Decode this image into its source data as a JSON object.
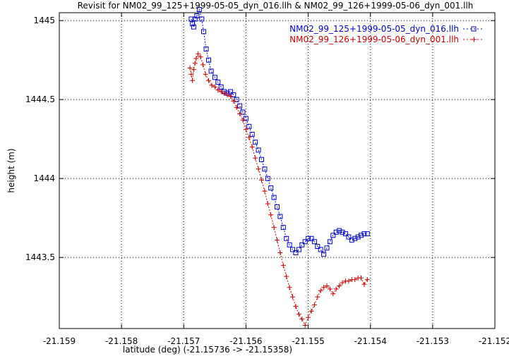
{
  "chart_data": {
    "type": "scatter",
    "title": "Revisit for NM02_99_125+1999-05-05_dyn_016.llh & NM02_99_126+1999-05-06_dyn_001.llh",
    "xlabel": "latitude (deg) (-21.15736 -> -21.15358)",
    "ylabel": "height (m)",
    "xlim": [
      -21.159,
      -21.152
    ],
    "ylim": [
      1443.05,
      1445.05
    ],
    "xticks": [
      -21.159,
      -21.158,
      -21.157,
      -21.156,
      -21.155,
      -21.154,
      -21.153,
      -21.152
    ],
    "xtick_labels": [
      "-21.159",
      "-21.158",
      "-21.157",
      "-21.156",
      "-21.155",
      "-21.154",
      "-21.153",
      "-21.152"
    ],
    "yticks": [
      1443.5,
      1444,
      1444.5,
      1445
    ],
    "ytick_labels": [
      "1443.5",
      "1444",
      "1444.5",
      "1445"
    ],
    "grid": true,
    "legend_position": "top-right",
    "series": [
      {
        "name": "NM02_99_125+1999-05-05_dyn_016.llh",
        "color": "#0000cc",
        "marker": "square",
        "x": [
          -21.15688,
          -21.15686,
          -21.15684,
          -21.15682,
          -21.15679,
          -21.15675,
          -21.15671,
          -21.15668,
          -21.15664,
          -21.1566,
          -21.15656,
          -21.1565,
          -21.15645,
          -21.1564,
          -21.15635,
          -21.1563,
          -21.15625,
          -21.1562,
          -21.15615,
          -21.1561,
          -21.15605,
          -21.156,
          -21.15595,
          -21.1559,
          -21.15585,
          -21.1558,
          -21.15575,
          -21.1557,
          -21.15565,
          -21.1556,
          -21.15555,
          -21.1555,
          -21.15545,
          -21.1554,
          -21.15535,
          -21.1553,
          -21.15525,
          -21.1552,
          -21.15515,
          -21.1551,
          -21.15505,
          -21.155,
          -21.15495,
          -21.1549,
          -21.15485,
          -21.1548,
          -21.15475,
          -21.1547,
          -21.15465,
          -21.1546,
          -21.15455,
          -21.1545,
          -21.15445,
          -21.1544,
          -21.15435,
          -21.1543,
          -21.15425,
          -21.1542,
          -21.15415,
          -21.1541,
          -21.15405
        ],
        "y": [
          1445.01,
          1444.98,
          1444.96,
          1445.01,
          1445.03,
          1445.07,
          1445.01,
          1444.93,
          1444.82,
          1444.75,
          1444.68,
          1444.64,
          1444.61,
          1444.58,
          1444.55,
          1444.54,
          1444.55,
          1444.53,
          1444.5,
          1444.46,
          1444.42,
          1444.38,
          1444.33,
          1444.28,
          1444.23,
          1444.18,
          1444.12,
          1444.06,
          1444.0,
          1443.94,
          1443.88,
          1443.82,
          1443.76,
          1443.69,
          1443.62,
          1443.58,
          1443.55,
          1443.53,
          1443.55,
          1443.58,
          1443.6,
          1443.62,
          1443.62,
          1443.6,
          1443.57,
          1443.55,
          1443.52,
          1443.56,
          1443.6,
          1443.64,
          1443.66,
          1443.67,
          1443.66,
          1443.65,
          1443.63,
          1443.61,
          1443.62,
          1443.63,
          1443.64,
          1443.65,
          1443.65
        ]
      },
      {
        "name": "NM02_99_126+1999-05-06_dyn_001.llh",
        "color": "#cc0000",
        "marker": "plus",
        "x": [
          -21.1569,
          -21.15688,
          -21.15686,
          -21.15684,
          -21.15682,
          -21.1568,
          -21.15677,
          -21.15673,
          -21.15669,
          -21.15665,
          -21.1566,
          -21.15655,
          -21.1565,
          -21.15645,
          -21.1564,
          -21.15635,
          -21.1563,
          -21.15625,
          -21.1562,
          -21.15615,
          -21.1561,
          -21.15605,
          -21.156,
          -21.15595,
          -21.1559,
          -21.15585,
          -21.1558,
          -21.15575,
          -21.1557,
          -21.15565,
          -21.1556,
          -21.15555,
          -21.1555,
          -21.15545,
          -21.1554,
          -21.15535,
          -21.1553,
          -21.15525,
          -21.1552,
          -21.15515,
          -21.1551,
          -21.15505,
          -21.155,
          -21.15495,
          -21.1549,
          -21.15485,
          -21.1548,
          -21.15475,
          -21.1547,
          -21.15465,
          -21.1546,
          -21.15455,
          -21.1545,
          -21.15445,
          -21.1544,
          -21.15435,
          -21.1543,
          -21.15425,
          -21.1542,
          -21.15415,
          -21.1541,
          -21.15405
        ],
        "y": [
          1444.7,
          1444.66,
          1444.62,
          1444.69,
          1444.73,
          1444.76,
          1444.79,
          1444.77,
          1444.72,
          1444.66,
          1444.62,
          1444.59,
          1444.58,
          1444.56,
          1444.55,
          1444.54,
          1444.53,
          1444.52,
          1444.49,
          1444.45,
          1444.41,
          1444.37,
          1444.31,
          1444.26,
          1444.2,
          1444.13,
          1444.06,
          1443.99,
          1443.92,
          1443.84,
          1443.77,
          1443.69,
          1443.61,
          1443.53,
          1443.45,
          1443.38,
          1443.31,
          1443.25,
          1443.19,
          1443.14,
          1443.11,
          1443.07,
          1443.12,
          1443.16,
          1443.2,
          1443.25,
          1443.29,
          1443.31,
          1443.32,
          1443.3,
          1443.27,
          1443.3,
          1443.32,
          1443.34,
          1443.35,
          1443.35,
          1443.36,
          1443.36,
          1443.37,
          1443.37,
          1443.33,
          1443.36
        ]
      }
    ]
  }
}
